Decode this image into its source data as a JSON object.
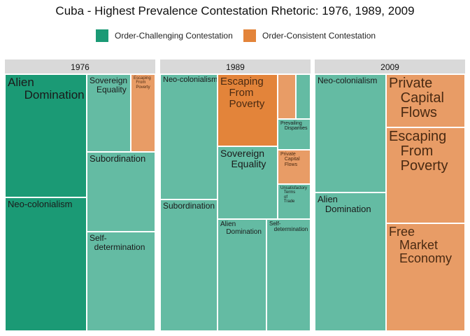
{
  "colors": {
    "order_challenging": "#1b9a75",
    "order_challenging_light": "#64bba3",
    "order_consistent_dark": "#e3843a",
    "order_consistent_light": "#e89c66"
  },
  "chart_data": {
    "type": "treemap",
    "title": "Cuba - Highest Prevalence Contestation Rhetoric: 1976, 1989, 2009",
    "legend": [
      {
        "name": "Order-Challenging Contestation",
        "color": "#1b9a75"
      },
      {
        "name": "Order-Consistent Contestation",
        "color": "#d95f02"
      }
    ],
    "legend_position": "top",
    "panels": [
      {
        "label": "1976",
        "tiles": [
          {
            "label": "Alien\n     Domination",
            "category": "Order-Challenging Contestation"
          },
          {
            "label": "Neo-colonialism",
            "category": "Order-Challenging Contestation"
          },
          {
            "label": "Sovereign\n   Equality",
            "category": "Order-Challenging Contestation"
          },
          {
            "label": "Escaping\n  From\n  Poverty",
            "category": "Order-Consistent Contestation"
          },
          {
            "label": "Subordination",
            "category": "Order-Challenging Contestation"
          },
          {
            "label": "Self-\n  determination",
            "category": "Order-Challenging Contestation"
          }
        ]
      },
      {
        "label": "1989",
        "tiles": [
          {
            "label": "Neo-colonialism",
            "category": "Order-Challenging Contestation"
          },
          {
            "label": "Subordination",
            "category": "Order-Challenging Contestation"
          },
          {
            "label": "Escaping\n   From\n   Poverty",
            "category": "Order-Consistent Contestation"
          },
          {
            "label": "",
            "category": "Order-Consistent Contestation"
          },
          {
            "label": "",
            "category": "Order-Challenging Contestation"
          },
          {
            "label": "Prevailing\n   Disparities",
            "category": "Order-Challenging Contestation"
          },
          {
            "label": "Sovereign\n    Equality",
            "category": "Order-Challenging Contestation"
          },
          {
            "label": "Private\n   Capital\n   Flows",
            "category": "Order-Consistent Contestation"
          },
          {
            "label": "Unsatisfactory\n   Terms\n   of\n   Trade",
            "category": "Order-Challenging Contestation"
          },
          {
            "label": "Alien\n   Domination",
            "category": "Order-Challenging Contestation"
          },
          {
            "label": "Self-\n   determination",
            "category": "Order-Challenging Contestation"
          }
        ]
      },
      {
        "label": "2009",
        "tiles": [
          {
            "label": "Neo-colonialism",
            "category": "Order-Challenging Contestation"
          },
          {
            "label": "Alien\n   Domination",
            "category": "Order-Challenging Contestation"
          },
          {
            "label": "Private\n   Capital\n   Flows",
            "category": "Order-Consistent Contestation"
          },
          {
            "label": "Escaping\n   From\n   Poverty",
            "category": "Order-Consistent Contestation"
          },
          {
            "label": "Free\n   Market\n   Economy",
            "category": "Order-Consistent Contestation"
          }
        ]
      }
    ]
  }
}
